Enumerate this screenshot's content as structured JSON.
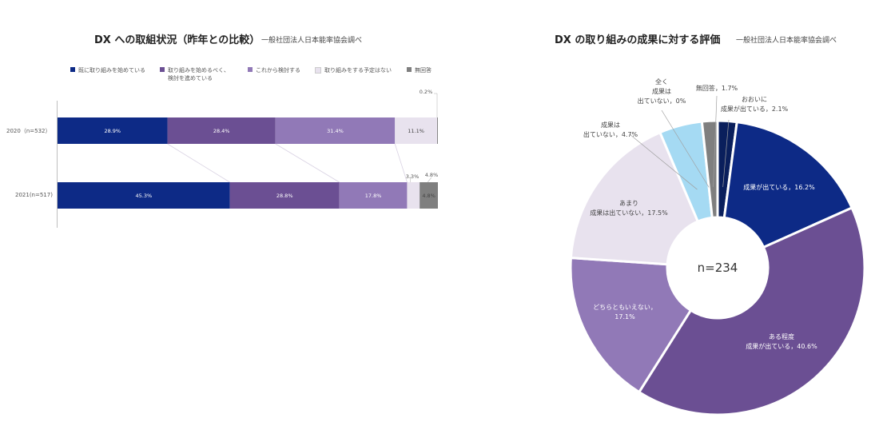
{
  "chart_data": [
    {
      "type": "bar",
      "stacked": true,
      "orientation": "horizontal",
      "title": "DX への取組状況（昨年との比較）",
      "source": "一般社団法人日本能率協会調べ",
      "categories": [
        "2020（n=532）",
        "2021(n=517)"
      ],
      "series": [
        {
          "name": "既に取り組みを始めている",
          "color": "#0d2a86",
          "values": [
            28.9,
            45.3
          ],
          "labels": [
            "28.9%",
            "45.3%"
          ]
        },
        {
          "name": "取り組みを始めるべく、\n検討を進めている",
          "color": "#6b4f93",
          "values": [
            28.4,
            28.8
          ],
          "labels": [
            "28.4%",
            "28.8%"
          ]
        },
        {
          "name": "これから検討する",
          "color": "#9179b7",
          "values": [
            31.4,
            17.8
          ],
          "labels": [
            "31.4%",
            "17.8%"
          ]
        },
        {
          "name": "取り組みをする予定はない",
          "color": "#e8e2ee",
          "values": [
            11.1,
            3.3
          ],
          "labels": [
            "11.1%",
            "3.3%"
          ]
        },
        {
          "name": "無回答",
          "color": "#7f7f7f",
          "values": [
            0.2,
            4.8
          ],
          "labels": [
            "0.2%",
            "4.8%"
          ]
        }
      ],
      "xlim": [
        0,
        100
      ],
      "legend": "top"
    },
    {
      "type": "pie",
      "donut": true,
      "title": "DX の取り組みの成果に対する評価",
      "source": "一般社団法人日本能率協会調べ",
      "center_label": "n=234",
      "slices": [
        {
          "label": "おおいに\n成果が出ている，2.1%",
          "value": 2.1,
          "color": "#0a1f5c",
          "leader": true
        },
        {
          "label": "成果が出ている，16.2%",
          "value": 16.2,
          "color": "#0d2a86",
          "leader": false
        },
        {
          "label": "ある程度\n成果が出ている，40.6%",
          "value": 40.6,
          "color": "#6b4f93",
          "leader": false
        },
        {
          "label": "どちらともいえない，\n17.1%",
          "value": 17.1,
          "color": "#9179b7",
          "leader": false
        },
        {
          "label": "あまり\n成果は出ていない，17.5%",
          "value": 17.5,
          "color": "#e8e2ee",
          "leader": false
        },
        {
          "label": "成果は\n出ていない，4.7%",
          "value": 4.7,
          "color": "#a5daf3",
          "leader": true
        },
        {
          "label": "全く\n成果は\n出ていない，0%",
          "value": 0.0,
          "color": "#cfcfcf",
          "leader": true
        },
        {
          "label": "無回答，1.7%",
          "value": 1.7,
          "color": "#7f7f7f",
          "leader": true
        }
      ]
    }
  ]
}
